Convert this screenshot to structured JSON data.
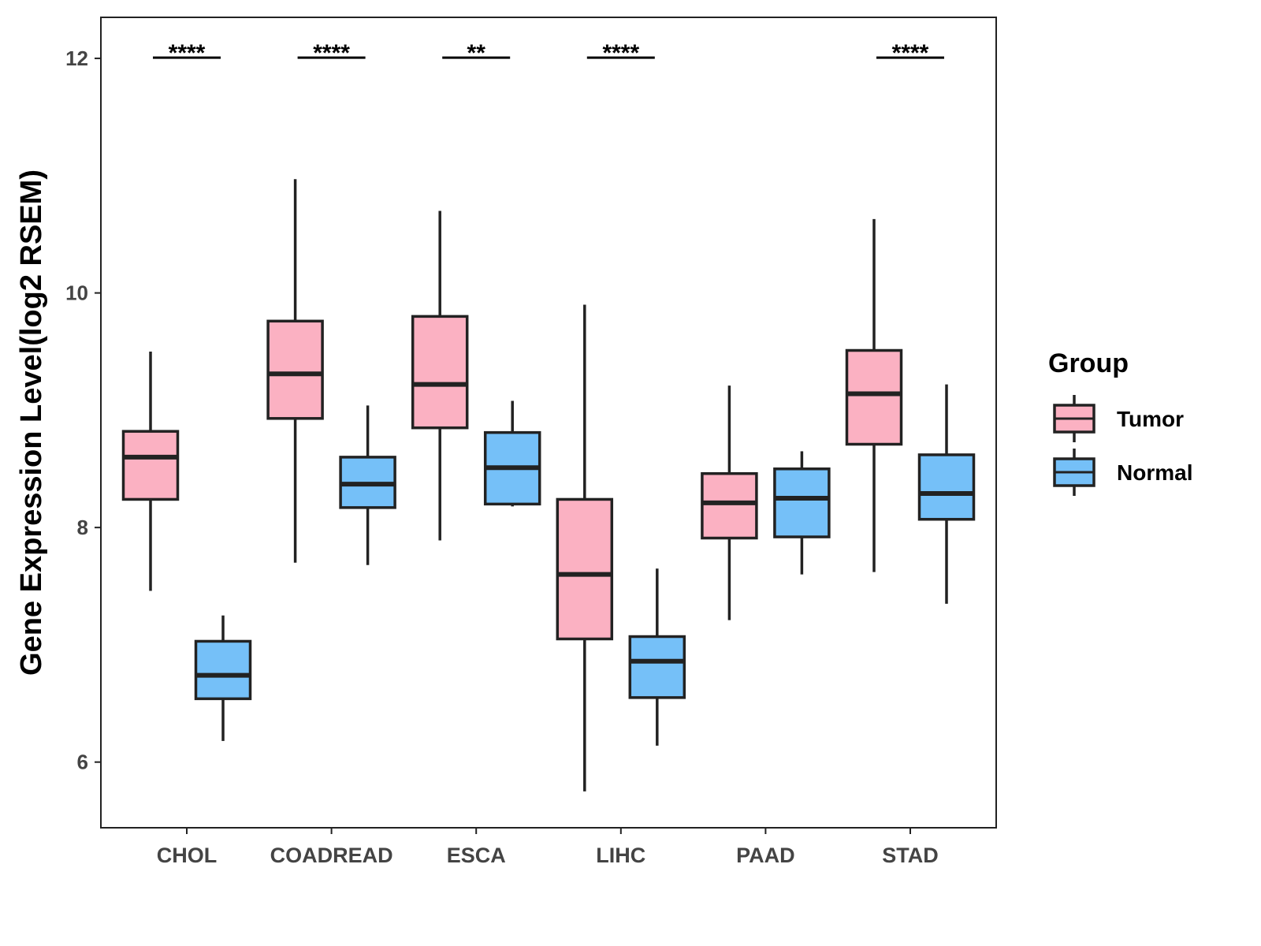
{
  "chart_data": {
    "type": "boxplot",
    "title": "",
    "xlabel": "",
    "ylabel": "Gene Expression Level(log2 RSEM)",
    "ylim": [
      5.44,
      12.35
    ],
    "yticks": [
      6,
      8,
      10,
      12
    ],
    "grid": false,
    "categories": [
      "CHOL",
      "COADREAD",
      "ESCA",
      "LIHC",
      "PAAD",
      "STAD"
    ],
    "legend": {
      "title": "Group",
      "placement": "right",
      "entries": [
        "Tumor",
        "Normal"
      ]
    },
    "series": [
      {
        "name": "Tumor",
        "color": "#FBB1C2",
        "boxes": [
          {
            "whisker_low": 7.46,
            "q1": 8.24,
            "median": 8.6,
            "q3": 8.82,
            "whisker_high": 9.5
          },
          {
            "whisker_low": 7.7,
            "q1": 8.93,
            "median": 9.31,
            "q3": 9.76,
            "whisker_high": 10.97
          },
          {
            "whisker_low": 7.89,
            "q1": 8.85,
            "median": 9.22,
            "q3": 9.8,
            "whisker_high": 10.7
          },
          {
            "whisker_low": 5.75,
            "q1": 7.05,
            "median": 7.6,
            "q3": 8.24,
            "whisker_high": 9.9
          },
          {
            "whisker_low": 7.21,
            "q1": 7.91,
            "median": 8.21,
            "q3": 8.46,
            "whisker_high": 9.21
          },
          {
            "whisker_low": 7.62,
            "q1": 8.71,
            "median": 9.14,
            "q3": 9.51,
            "whisker_high": 10.63
          }
        ]
      },
      {
        "name": "Normal",
        "color": "#75C0F8",
        "boxes": [
          {
            "whisker_low": 6.18,
            "q1": 6.54,
            "median": 6.74,
            "q3": 7.03,
            "whisker_high": 7.25
          },
          {
            "whisker_low": 7.68,
            "q1": 8.17,
            "median": 8.37,
            "q3": 8.6,
            "whisker_high": 9.04
          },
          {
            "whisker_low": 8.18,
            "q1": 8.2,
            "median": 8.51,
            "q3": 8.81,
            "whisker_high": 9.08
          },
          {
            "whisker_low": 6.14,
            "q1": 6.55,
            "median": 6.86,
            "q3": 7.07,
            "whisker_high": 7.65
          },
          {
            "whisker_low": 7.6,
            "q1": 7.92,
            "median": 8.25,
            "q3": 8.5,
            "whisker_high": 8.65
          },
          {
            "whisker_low": 7.35,
            "q1": 8.07,
            "median": 8.29,
            "q3": 8.62,
            "whisker_high": 9.22
          }
        ]
      }
    ],
    "significance": [
      {
        "category": "CHOL",
        "label": "****",
        "y": 12
      },
      {
        "category": "COADREAD",
        "label": "****",
        "y": 12
      },
      {
        "category": "ESCA",
        "label": "**",
        "y": 12
      },
      {
        "category": "LIHC",
        "label": "****",
        "y": 12
      },
      {
        "category": "STAD",
        "label": "****",
        "y": 12
      }
    ]
  }
}
